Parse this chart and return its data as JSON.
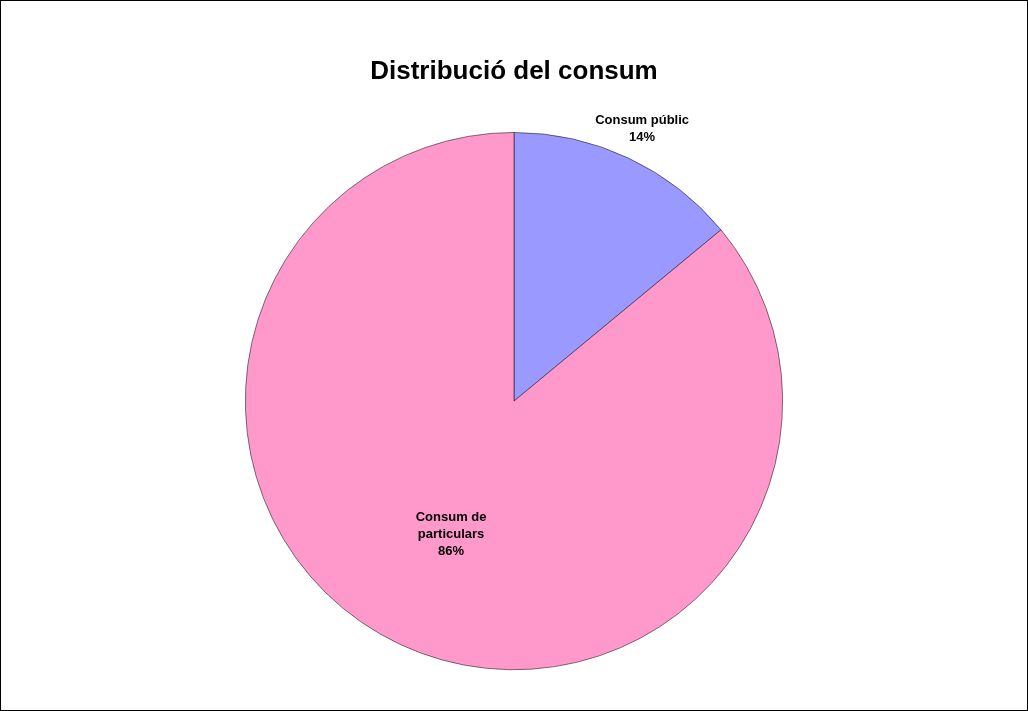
{
  "chart_data": {
    "type": "pie",
    "title": "Distribució del consum",
    "categories": [
      "Consum públic",
      "Consum de particulars"
    ],
    "values": [
      14,
      86
    ],
    "colors": [
      "#9999ff",
      "#ff99cc"
    ],
    "value_labels": [
      "14%",
      "86%"
    ],
    "legend": false
  }
}
